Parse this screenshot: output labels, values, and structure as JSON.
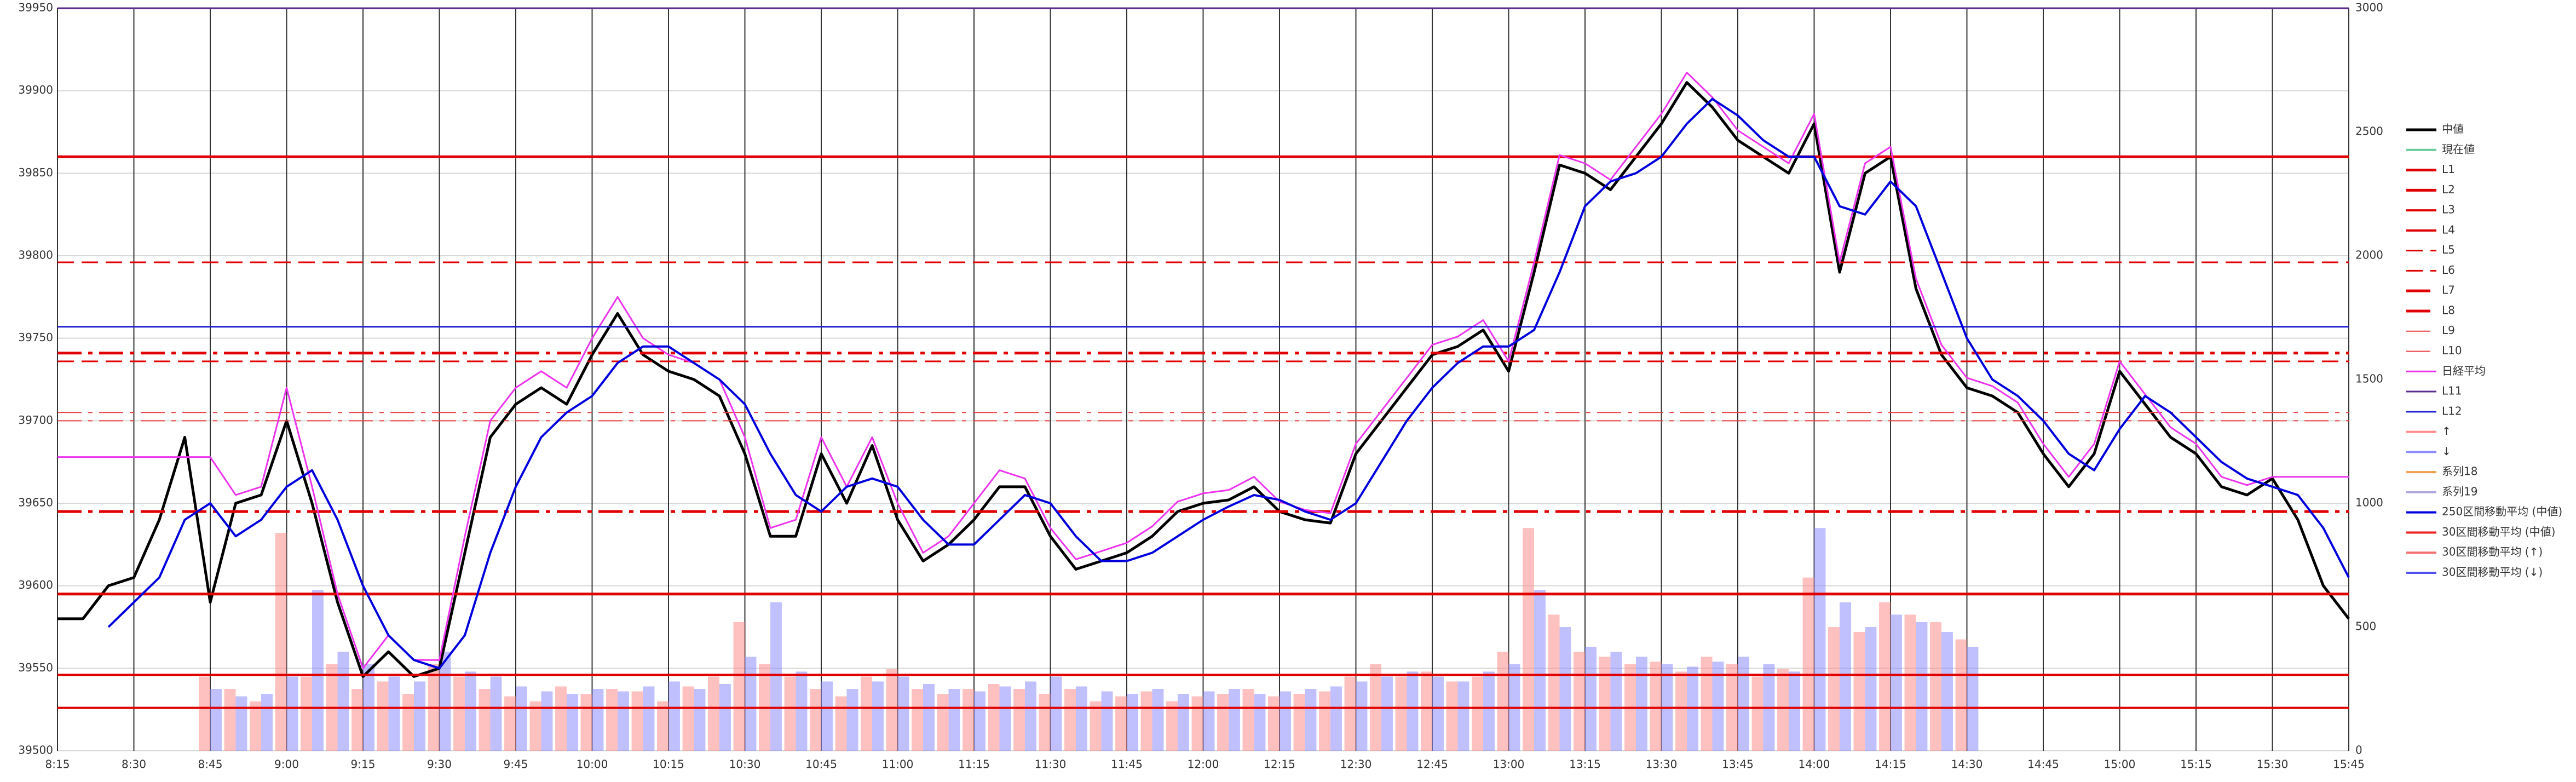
{
  "chart_data": {
    "type": "line",
    "grid": true,
    "xlim": [
      495,
      945
    ],
    "ylim": [
      39500,
      39950
    ],
    "y2lim": [
      0,
      3000
    ],
    "xticks": [
      {
        "value": 495,
        "label": "8:15"
      },
      {
        "value": 510,
        "label": "8:30"
      },
      {
        "value": 525,
        "label": "8:45"
      },
      {
        "value": 540,
        "label": "9:00"
      },
      {
        "value": 555,
        "label": "9:15"
      },
      {
        "value": 570,
        "label": "9:30"
      },
      {
        "value": 585,
        "label": "9:45"
      },
      {
        "value": 600,
        "label": "10:00"
      },
      {
        "value": 615,
        "label": "10:15"
      },
      {
        "value": 630,
        "label": "10:30"
      },
      {
        "value": 645,
        "label": "10:45"
      },
      {
        "value": 660,
        "label": "11:00"
      },
      {
        "value": 675,
        "label": "11:15"
      },
      {
        "value": 690,
        "label": "11:30"
      },
      {
        "value": 705,
        "label": "11:45"
      },
      {
        "value": 720,
        "label": "12:00"
      },
      {
        "value": 735,
        "label": "12:15"
      },
      {
        "value": 750,
        "label": "12:30"
      },
      {
        "value": 765,
        "label": "12:45"
      },
      {
        "value": 780,
        "label": "13:00"
      },
      {
        "value": 795,
        "label": "13:15"
      },
      {
        "value": 810,
        "label": "13:30"
      },
      {
        "value": 825,
        "label": "13:45"
      },
      {
        "value": 840,
        "label": "14:00"
      },
      {
        "value": 855,
        "label": "14:15"
      },
      {
        "value": 870,
        "label": "14:30"
      },
      {
        "value": 885,
        "label": "14:45"
      },
      {
        "value": 900,
        "label": "15:00"
      },
      {
        "value": 915,
        "label": "15:15"
      },
      {
        "value": 930,
        "label": "15:30"
      },
      {
        "value": 945,
        "label": "15:45"
      }
    ],
    "yticks": [
      39500,
      39550,
      39600,
      39650,
      39700,
      39750,
      39800,
      39850,
      39900,
      39950
    ],
    "y2ticks": [
      0,
      500,
      1000,
      1500,
      2000,
      2500,
      3000
    ],
    "x": [
      495,
      500,
      505,
      510,
      515,
      520,
      525,
      530,
      535,
      540,
      545,
      550,
      555,
      560,
      565,
      570,
      575,
      580,
      585,
      590,
      595,
      600,
      605,
      610,
      615,
      620,
      625,
      630,
      635,
      640,
      645,
      650,
      655,
      660,
      665,
      670,
      675,
      680,
      685,
      690,
      695,
      700,
      705,
      710,
      715,
      720,
      725,
      730,
      735,
      740,
      745,
      750,
      755,
      760,
      765,
      770,
      775,
      780,
      785,
      790,
      795,
      800,
      805,
      810,
      815,
      820,
      825,
      830,
      835,
      840,
      845,
      850,
      855,
      860,
      865,
      870,
      875,
      880,
      885,
      890,
      895,
      900,
      905,
      910,
      915,
      920,
      925,
      930,
      935,
      940,
      945
    ],
    "series": [
      {
        "name": "中値",
        "color": "#000000",
        "mark": "line",
        "width": 5,
        "values": [
          39580,
          39580,
          39600,
          39605,
          39640,
          39690,
          39590,
          39650,
          39655,
          39700,
          39650,
          39590,
          39545,
          39560,
          39545,
          39550,
          39620,
          39690,
          39710,
          39720,
          39710,
          39740,
          39765,
          39740,
          39730,
          39725,
          39715,
          39680,
          39630,
          39630,
          39680,
          39650,
          39685,
          39640,
          39615,
          39625,
          39640,
          39660,
          39660,
          39630,
          39610,
          39615,
          39620,
          39630,
          39645,
          39650,
          39652,
          39660,
          39645,
          39640,
          39638,
          39680,
          39700,
          39720,
          39740,
          39745,
          39755,
          39730,
          39790,
          39855,
          39850,
          39840,
          39860,
          39880,
          39905,
          39890,
          39870,
          39860,
          39850,
          39880,
          39790,
          39850,
          39860,
          39780,
          39740,
          39720,
          39715,
          39705,
          39680,
          39660,
          39680,
          39730,
          39710,
          39690,
          39680,
          39660,
          39655,
          39665,
          39640,
          39600,
          39580
        ]
      },
      {
        "name": "現在値",
        "color": "#66cc99",
        "mark": "legend"
      },
      {
        "name": "L1",
        "color": "#e00000",
        "mark": "hline",
        "style": "solid",
        "width": 5,
        "value": 39860
      },
      {
        "name": "L2",
        "color": "#e00000",
        "mark": "hline",
        "style": "solid",
        "width": 5,
        "value": 39595
      },
      {
        "name": "L3",
        "color": "#e00000",
        "mark": "hline",
        "style": "solid",
        "width": 4,
        "value": 39546
      },
      {
        "name": "L4",
        "color": "#e00000",
        "mark": "hline",
        "style": "solid",
        "width": 4,
        "value": 39526
      },
      {
        "name": "L5",
        "color": "#e00000",
        "mark": "hline",
        "style": "dash",
        "width": 3,
        "value": 39796
      },
      {
        "name": "L6",
        "color": "#e00000",
        "mark": "hline",
        "style": "dash",
        "width": 3,
        "value": 39736
      },
      {
        "name": "L7",
        "color": "#e00000",
        "mark": "hline",
        "style": "dashdot",
        "width": 5,
        "value": 39741
      },
      {
        "name": "L8",
        "color": "#e00000",
        "mark": "hline",
        "style": "dashdot",
        "width": 5,
        "value": 39645
      },
      {
        "name": "L9",
        "color": "#e84040",
        "mark": "hline",
        "style": "dashdot",
        "width": 2,
        "value": 39705
      },
      {
        "name": "L10",
        "color": "#e84040",
        "mark": "hline",
        "style": "dashdot",
        "width": 2,
        "value": 39700
      },
      {
        "name": "日経平均",
        "color": "#ee33ee",
        "mark": "line",
        "width": 3,
        "values": [
          39678,
          39678,
          39678,
          39678,
          39678,
          39678,
          39678,
          39655,
          39660,
          39720,
          39660,
          39595,
          39550,
          39570,
          39555,
          39555,
          39630,
          39700,
          39720,
          39730,
          39720,
          39750,
          39775,
          39750,
          39740,
          39735,
          39725,
          39690,
          39635,
          39640,
          39690,
          39660,
          39690,
          39650,
          39620,
          39630,
          39650,
          39670,
          39665,
          39635,
          39616,
          39621,
          39626,
          39636,
          39651,
          39656,
          39658,
          39666,
          39651,
          39646,
          39644,
          39686,
          39706,
          39726,
          39746,
          39751,
          39761,
          39736,
          39796,
          39861,
          39856,
          39846,
          39866,
          39886,
          39911,
          39896,
          39876,
          39866,
          39856,
          39886,
          39796,
          39856,
          39866,
          39786,
          39746,
          39726,
          39721,
          39711,
          39686,
          39666,
          39686,
          39736,
          39716,
          39696,
          39686,
          39666,
          39661,
          39666,
          39666,
          39666,
          39666
        ]
      },
      {
        "name": "L11",
        "color": "#5b2c8f",
        "mark": "hline",
        "style": "solid",
        "width": 3,
        "value": 39950
      },
      {
        "name": "L12",
        "color": "#2020d0",
        "mark": "hline",
        "style": "solid",
        "width": 3,
        "value": 39757
      },
      {
        "name": "↑",
        "color": "#ff8c8c",
        "mark": "bar",
        "axis": "y2",
        "values": [
          null,
          null,
          null,
          null,
          null,
          null,
          300,
          250,
          200,
          880,
          300,
          350,
          250,
          280,
          230,
          350,
          300,
          250,
          220,
          200,
          260,
          230,
          250,
          240,
          200,
          260,
          300,
          520,
          350,
          300,
          250,
          220,
          300,
          330,
          250,
          230,
          250,
          270,
          250,
          230,
          250,
          200,
          220,
          240,
          200,
          220,
          230,
          250,
          220,
          230,
          240,
          300,
          350,
          300,
          320,
          280,
          300,
          400,
          900,
          550,
          400,
          380,
          350,
          360,
          320,
          380,
          350,
          300,
          330,
          700,
          500,
          480,
          600,
          550,
          520,
          450,
          null,
          null,
          null,
          null,
          null,
          null,
          null,
          null,
          null,
          null,
          null,
          null,
          null,
          null,
          null
        ]
      },
      {
        "name": "↓",
        "color": "#8c8cff",
        "mark": "bar",
        "axis": "y2",
        "values": [
          null,
          null,
          null,
          null,
          null,
          null,
          250,
          220,
          230,
          300,
          650,
          400,
          350,
          300,
          280,
          400,
          320,
          300,
          260,
          240,
          230,
          250,
          240,
          260,
          280,
          250,
          270,
          380,
          600,
          320,
          280,
          250,
          280,
          300,
          270,
          250,
          240,
          260,
          280,
          300,
          260,
          240,
          230,
          250,
          230,
          240,
          250,
          230,
          240,
          250,
          260,
          280,
          300,
          320,
          300,
          280,
          320,
          350,
          650,
          500,
          420,
          400,
          380,
          350,
          340,
          360,
          380,
          350,
          320,
          900,
          600,
          500,
          550,
          520,
          480,
          420,
          null,
          null,
          null,
          null,
          null,
          null,
          null,
          null,
          null,
          null,
          null,
          null,
          null,
          null,
          null
        ]
      },
      {
        "name": "系列18",
        "color": "#f0a050",
        "mark": "legend"
      },
      {
        "name": "系列19",
        "color": "#b0a8e0",
        "mark": "legend"
      },
      {
        "name": "250区間移動平均 (中値)",
        "color": "#0000dd",
        "mark": "line",
        "width": 4,
        "values": [
          null,
          null,
          39575,
          39590,
          39605,
          39640,
          39650,
          39630,
          39640,
          39660,
          39670,
          39640,
          39600,
          39570,
          39555,
          39550,
          39570,
          39620,
          39660,
          39690,
          39705,
          39715,
          39735,
          39745,
          39745,
          39735,
          39725,
          39710,
          39680,
          39655,
          39645,
          39660,
          39665,
          39660,
          39640,
          39625,
          39625,
          39640,
          39655,
          39650,
          39630,
          39615,
          39615,
          39620,
          39630,
          39640,
          39648,
          39655,
          39652,
          39645,
          39640,
          39650,
          39675,
          39700,
          39720,
          39735,
          39745,
          39745,
          39755,
          39790,
          39830,
          39845,
          39850,
          39860,
          39880,
          39895,
          39885,
          39870,
          39860,
          39860,
          39830,
          39825,
          39845,
          39830,
          39790,
          39750,
          39725,
          39715,
          39700,
          39680,
          39670,
          39695,
          39715,
          39705,
          39690,
          39675,
          39665,
          39660,
          39655,
          39635,
          39605
        ]
      },
      {
        "name": "30区間移動平均 (中値)",
        "color": "#ee2222",
        "mark": "legend"
      },
      {
        "name": "30区間移動平均 (↑)",
        "color": "#f07070",
        "mark": "legend"
      },
      {
        "name": "30区間移動平均 (↓)",
        "color": "#5050ee",
        "mark": "legend"
      }
    ]
  }
}
